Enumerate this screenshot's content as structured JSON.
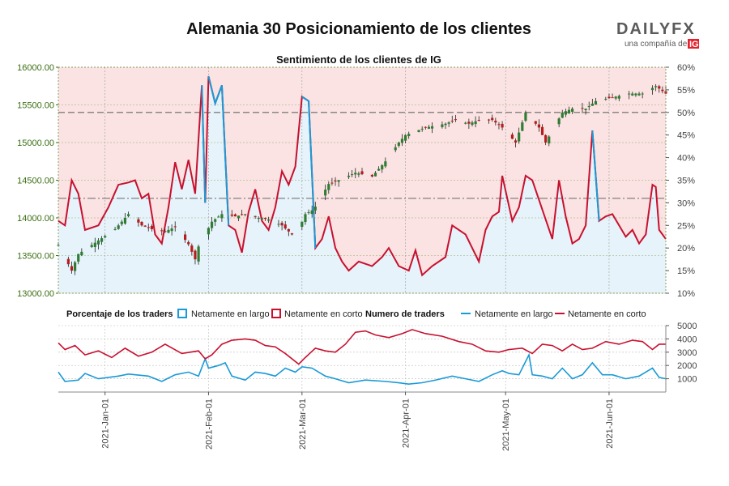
{
  "header": {
    "title": "Alemania 30 Posicionamiento de los clientes",
    "logo_text": "DAILYFX",
    "logo_sub": "una compañía de",
    "logo_ig": "IG"
  },
  "colors": {
    "long": "#1a9ad6",
    "short": "#c8102e",
    "short_bg": "#fbe3e3",
    "long_bg": "#e6f3fa",
    "price_axis": "#3a6e12",
    "candle_up": "#2e7d32",
    "candle_down": "#b71c1c"
  },
  "chart_data": [
    {
      "type": "candlestick+area",
      "title": "Sentimiento de los clientes de IG",
      "x_ticks": [
        "2021-Jan-01",
        "2021-Feb-01",
        "2021-Mar-01",
        "2021-Apr-01",
        "2021-May-01",
        "2021-Jun-01"
      ],
      "y_left_ticks": [
        "13000.00",
        "13500.00",
        "14000.00",
        "14500.00",
        "15000.00",
        "15500.00",
        "16000.00"
      ],
      "y_left_range": [
        13000,
        16000
      ],
      "y_right_ticks": [
        "10%",
        "15%",
        "20%",
        "25%",
        "30%",
        "35%",
        "40%",
        "45%",
        "50%",
        "55%",
        "60%"
      ],
      "y_right_range": [
        10,
        60
      ],
      "reference_lines": [
        {
          "axis": "right",
          "value": 50
        },
        {
          "axis": "right",
          "value": 31
        }
      ],
      "x_start": "2020-12-18",
      "x_end": "2021-06-18",
      "price_keyframes": [
        [
          "2020-12-18",
          13640
        ],
        [
          "2020-12-22",
          13300
        ],
        [
          "2020-12-24",
          13520
        ],
        [
          "2020-12-30",
          13700
        ],
        [
          "2021-01-04",
          13850
        ],
        [
          "2021-01-06",
          13950
        ],
        [
          "2021-01-08",
          14050
        ],
        [
          "2021-01-12",
          13900
        ],
        [
          "2021-01-15",
          13850
        ],
        [
          "2021-01-19",
          13820
        ],
        [
          "2021-01-22",
          13880
        ],
        [
          "2021-01-26",
          13650
        ],
        [
          "2021-01-28",
          13450
        ],
        [
          "2021-01-29",
          13620
        ],
        [
          "2021-02-02",
          13950
        ],
        [
          "2021-02-05",
          14050
        ],
        [
          "2021-02-09",
          14020
        ],
        [
          "2021-02-12",
          14050
        ],
        [
          "2021-02-16",
          14000
        ],
        [
          "2021-02-19",
          13980
        ],
        [
          "2021-02-23",
          13900
        ],
        [
          "2021-02-26",
          13780
        ],
        [
          "2021-03-01",
          13950
        ],
        [
          "2021-03-02",
          14050
        ],
        [
          "2021-03-04",
          14100
        ],
        [
          "2021-03-05",
          14150
        ],
        [
          "2021-03-09",
          14450
        ],
        [
          "2021-03-12",
          14500
        ],
        [
          "2021-03-17",
          14600
        ],
        [
          "2021-03-22",
          14550
        ],
        [
          "2021-03-26",
          14750
        ],
        [
          "2021-03-30",
          15000
        ],
        [
          "2021-04-01",
          15100
        ],
        [
          "2021-04-07",
          15200
        ],
        [
          "2021-04-13",
          15250
        ],
        [
          "2021-04-16",
          15300
        ],
        [
          "2021-04-20",
          15250
        ],
        [
          "2021-04-23",
          15300
        ],
        [
          "2021-04-27",
          15300
        ],
        [
          "2021-04-30",
          15200
        ],
        [
          "2021-05-04",
          15000
        ],
        [
          "2021-05-07",
          15400
        ],
        [
          "2021-05-11",
          15200
        ],
        [
          "2021-05-13",
          15000
        ],
        [
          "2021-05-18",
          15400
        ],
        [
          "2021-05-21",
          15450
        ],
        [
          "2021-05-25",
          15450
        ],
        [
          "2021-05-28",
          15550
        ],
        [
          "2021-06-02",
          15600
        ],
        [
          "2021-06-07",
          15650
        ],
        [
          "2021-06-11",
          15650
        ],
        [
          "2021-06-15",
          15750
        ],
        [
          "2021-06-18",
          15650
        ]
      ],
      "net_long_pct_keyframes": [
        [
          "2020-12-18",
          26.0
        ],
        [
          "2020-12-20",
          25.0
        ],
        [
          "2020-12-22",
          35.0
        ],
        [
          "2020-12-24",
          32.0
        ],
        [
          "2020-12-26",
          24.0
        ],
        [
          "2020-12-30",
          25.0
        ],
        [
          "2021-01-02",
          29.0
        ],
        [
          "2021-01-05",
          34.0
        ],
        [
          "2021-01-08",
          34.5
        ],
        [
          "2021-01-10",
          35.0
        ],
        [
          "2021-01-12",
          31.0
        ],
        [
          "2021-01-14",
          32.0
        ],
        [
          "2021-01-16",
          23.0
        ],
        [
          "2021-01-18",
          21.0
        ],
        [
          "2021-01-20",
          29.0
        ],
        [
          "2021-01-22",
          39.0
        ],
        [
          "2021-01-24",
          33.0
        ],
        [
          "2021-01-26",
          39.5
        ],
        [
          "2021-01-28",
          32.0
        ],
        [
          "2021-01-30",
          56.0
        ],
        [
          "2021-01-31",
          30.0
        ],
        [
          "2021-02-01",
          58.0
        ],
        [
          "2021-02-03",
          52.0
        ],
        [
          "2021-02-05",
          56.0
        ],
        [
          "2021-02-07",
          25.0
        ],
        [
          "2021-02-09",
          24.0
        ],
        [
          "2021-02-11",
          19.0
        ],
        [
          "2021-02-13",
          28.0
        ],
        [
          "2021-02-15",
          33.0
        ],
        [
          "2021-02-17",
          26.0
        ],
        [
          "2021-02-19",
          24.0
        ],
        [
          "2021-02-21",
          29.0
        ],
        [
          "2021-02-23",
          37.0
        ],
        [
          "2021-02-25",
          34.0
        ],
        [
          "2021-02-27",
          38.0
        ],
        [
          "2021-03-01",
          53.5
        ],
        [
          "2021-03-03",
          52.5
        ],
        [
          "2021-03-05",
          20.0
        ],
        [
          "2021-03-07",
          22.0
        ],
        [
          "2021-03-09",
          27.0
        ],
        [
          "2021-03-11",
          20.0
        ],
        [
          "2021-03-13",
          17.0
        ],
        [
          "2021-03-15",
          15.0
        ],
        [
          "2021-03-18",
          17.0
        ],
        [
          "2021-03-22",
          16.0
        ],
        [
          "2021-03-25",
          18.0
        ],
        [
          "2021-03-27",
          20.0
        ],
        [
          "2021-03-30",
          16.0
        ],
        [
          "2021-04-02",
          15.0
        ],
        [
          "2021-04-04",
          19.5
        ],
        [
          "2021-04-06",
          14.0
        ],
        [
          "2021-04-09",
          16.0
        ],
        [
          "2021-04-13",
          18.0
        ],
        [
          "2021-04-15",
          25.0
        ],
        [
          "2021-04-19",
          23.0
        ],
        [
          "2021-04-23",
          17.0
        ],
        [
          "2021-04-25",
          24.0
        ],
        [
          "2021-04-27",
          27.0
        ],
        [
          "2021-04-29",
          28.0
        ],
        [
          "2021-04-30",
          36.0
        ],
        [
          "2021-05-03",
          26.0
        ],
        [
          "2021-05-05",
          29.0
        ],
        [
          "2021-05-07",
          36.0
        ],
        [
          "2021-05-09",
          35.0
        ],
        [
          "2021-05-12",
          28.5
        ],
        [
          "2021-05-15",
          22.0
        ],
        [
          "2021-05-17",
          35.0
        ],
        [
          "2021-05-19",
          27.0
        ],
        [
          "2021-05-21",
          21.0
        ],
        [
          "2021-05-23",
          22.0
        ],
        [
          "2021-05-25",
          25.0
        ],
        [
          "2021-05-27",
          46.0
        ],
        [
          "2021-05-29",
          26.0
        ],
        [
          "2021-05-31",
          27.0
        ],
        [
          "2021-06-02",
          27.5
        ],
        [
          "2021-06-04",
          25.0
        ],
        [
          "2021-06-06",
          22.5
        ],
        [
          "2021-06-08",
          24.0
        ],
        [
          "2021-06-10",
          21.0
        ],
        [
          "2021-06-12",
          23.0
        ],
        [
          "2021-06-14",
          34.0
        ],
        [
          "2021-06-15",
          33.5
        ],
        [
          "2021-06-16",
          24.0
        ],
        [
          "2021-06-18",
          22.0
        ]
      ]
    },
    {
      "type": "line",
      "title": "Numero de traders",
      "y_ticks": [
        "1000",
        "2000",
        "3000",
        "4000",
        "5000"
      ],
      "y_range": [
        0,
        5000
      ],
      "series": [
        {
          "name": "Netamente en largo",
          "color_key": "long",
          "keyframes": [
            [
              "2020-12-18",
              1500
            ],
            [
              "2020-12-20",
              800
            ],
            [
              "2020-12-24",
              900
            ],
            [
              "2020-12-26",
              1400
            ],
            [
              "2020-12-30",
              1000
            ],
            [
              "2021-01-05",
              1200
            ],
            [
              "2021-01-08",
              1350
            ],
            [
              "2021-01-14",
              1200
            ],
            [
              "2021-01-18",
              800
            ],
            [
              "2021-01-22",
              1300
            ],
            [
              "2021-01-26",
              1500
            ],
            [
              "2021-01-29",
              1200
            ],
            [
              "2021-01-31",
              2500
            ],
            [
              "2021-02-01",
              1800
            ],
            [
              "2021-02-04",
              2000
            ],
            [
              "2021-02-06",
              2200
            ],
            [
              "2021-02-08",
              1200
            ],
            [
              "2021-02-12",
              900
            ],
            [
              "2021-02-15",
              1500
            ],
            [
              "2021-02-18",
              1400
            ],
            [
              "2021-02-21",
              1200
            ],
            [
              "2021-02-24",
              1800
            ],
            [
              "2021-02-27",
              1500
            ],
            [
              "2021-03-01",
              1900
            ],
            [
              "2021-03-04",
              1800
            ],
            [
              "2021-03-08",
              1200
            ],
            [
              "2021-03-11",
              1000
            ],
            [
              "2021-03-15",
              700
            ],
            [
              "2021-03-20",
              900
            ],
            [
              "2021-03-26",
              800
            ],
            [
              "2021-03-30",
              700
            ],
            [
              "2021-04-02",
              600
            ],
            [
              "2021-04-06",
              700
            ],
            [
              "2021-04-10",
              900
            ],
            [
              "2021-04-15",
              1200
            ],
            [
              "2021-04-19",
              1000
            ],
            [
              "2021-04-23",
              800
            ],
            [
              "2021-04-27",
              1300
            ],
            [
              "2021-04-30",
              1600
            ],
            [
              "2021-05-02",
              1400
            ],
            [
              "2021-05-05",
              1300
            ],
            [
              "2021-05-08",
              2800
            ],
            [
              "2021-05-09",
              1300
            ],
            [
              "2021-05-12",
              1200
            ],
            [
              "2021-05-15",
              1000
            ],
            [
              "2021-05-18",
              1800
            ],
            [
              "2021-05-21",
              1000
            ],
            [
              "2021-05-24",
              1300
            ],
            [
              "2021-05-27",
              2200
            ],
            [
              "2021-05-30",
              1300
            ],
            [
              "2021-06-02",
              1300
            ],
            [
              "2021-06-06",
              1000
            ],
            [
              "2021-06-10",
              1200
            ],
            [
              "2021-06-14",
              1800
            ],
            [
              "2021-06-16",
              1100
            ],
            [
              "2021-06-18",
              1000
            ]
          ]
        },
        {
          "name": "Netamente en corto",
          "color_key": "short",
          "keyframes": [
            [
              "2020-12-18",
              3700
            ],
            [
              "2020-12-20",
              3200
            ],
            [
              "2020-12-23",
              3500
            ],
            [
              "2020-12-26",
              2800
            ],
            [
              "2020-12-30",
              3100
            ],
            [
              "2021-01-03",
              2600
            ],
            [
              "2021-01-07",
              3300
            ],
            [
              "2021-01-11",
              2700
            ],
            [
              "2021-01-15",
              3000
            ],
            [
              "2021-01-19",
              3600
            ],
            [
              "2021-01-24",
              2900
            ],
            [
              "2021-01-29",
              3100
            ],
            [
              "2021-01-31",
              2500
            ],
            [
              "2021-02-02",
              2800
            ],
            [
              "2021-02-05",
              3600
            ],
            [
              "2021-02-08",
              3900
            ],
            [
              "2021-02-12",
              4000
            ],
            [
              "2021-02-15",
              3900
            ],
            [
              "2021-02-18",
              3500
            ],
            [
              "2021-02-21",
              3400
            ],
            [
              "2021-02-24",
              2900
            ],
            [
              "2021-02-28",
              2100
            ],
            [
              "2021-03-02",
              2600
            ],
            [
              "2021-03-05",
              3300
            ],
            [
              "2021-03-08",
              3100
            ],
            [
              "2021-03-11",
              3000
            ],
            [
              "2021-03-14",
              3600
            ],
            [
              "2021-03-17",
              4500
            ],
            [
              "2021-03-20",
              4600
            ],
            [
              "2021-03-23",
              4300
            ],
            [
              "2021-03-27",
              4100
            ],
            [
              "2021-03-31",
              4400
            ],
            [
              "2021-04-03",
              4700
            ],
            [
              "2021-04-07",
              4400
            ],
            [
              "2021-04-12",
              4200
            ],
            [
              "2021-04-17",
              3800
            ],
            [
              "2021-04-21",
              3600
            ],
            [
              "2021-04-25",
              3100
            ],
            [
              "2021-04-29",
              3000
            ],
            [
              "2021-05-02",
              3200
            ],
            [
              "2021-05-06",
              3300
            ],
            [
              "2021-05-09",
              2900
            ],
            [
              "2021-05-12",
              3600
            ],
            [
              "2021-05-15",
              3500
            ],
            [
              "2021-05-18",
              3100
            ],
            [
              "2021-05-21",
              3600
            ],
            [
              "2021-05-24",
              3200
            ],
            [
              "2021-05-27",
              3300
            ],
            [
              "2021-05-31",
              3800
            ],
            [
              "2021-06-04",
              3600
            ],
            [
              "2021-06-08",
              3900
            ],
            [
              "2021-06-11",
              3800
            ],
            [
              "2021-06-14",
              3200
            ],
            [
              "2021-06-16",
              3600
            ],
            [
              "2021-06-18",
              3600
            ]
          ]
        }
      ]
    }
  ],
  "legend": {
    "pct_title": "Porcentaje de los traders",
    "long_label": "Netamente en largo",
    "short_label": "Netamente en corto",
    "count_title": "Numero de traders",
    "count_long_label": "Netamente en largo",
    "count_short_label": "Netamente en corto"
  }
}
